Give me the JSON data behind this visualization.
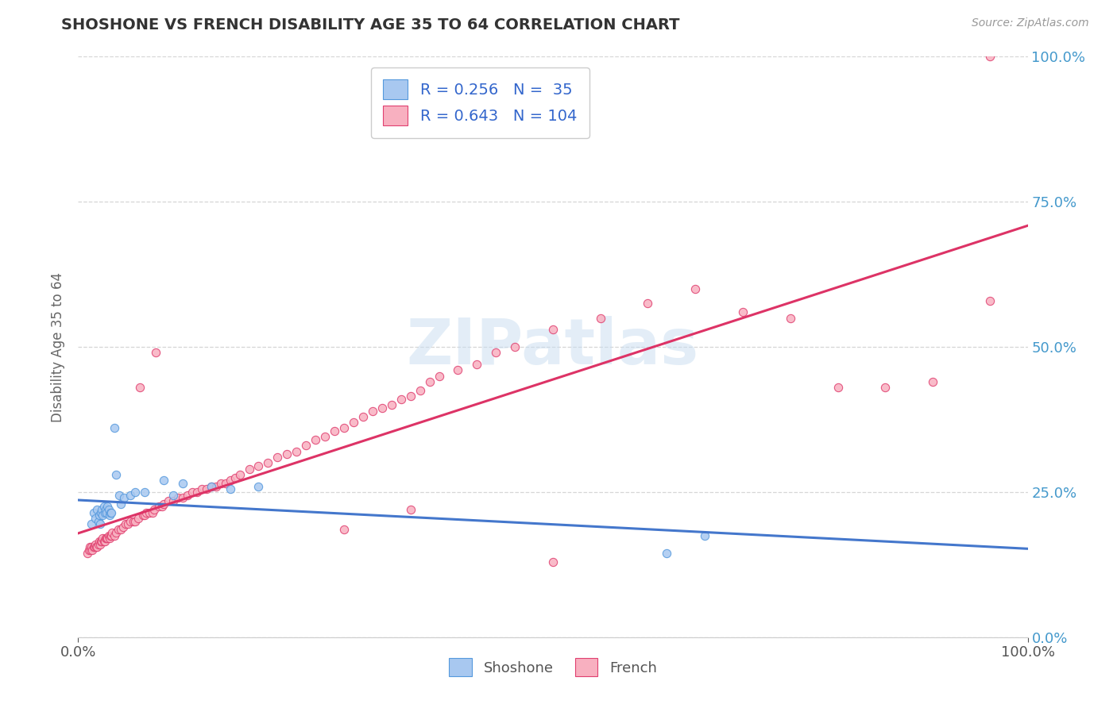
{
  "title": "SHOSHONE VS FRENCH DISABILITY AGE 35 TO 64 CORRELATION CHART",
  "source_text": "Source: ZipAtlas.com",
  "ylabel": "Disability Age 35 to 64",
  "xlim": [
    0.0,
    1.0
  ],
  "ylim": [
    0.0,
    1.0
  ],
  "shoshone_color": "#a8c8f0",
  "shoshone_edge_color": "#5599dd",
  "french_color": "#f8b0c0",
  "french_edge_color": "#e04070",
  "shoshone_line_color": "#4477cc",
  "french_line_color": "#dd3366",
  "shoshone_R": 0.256,
  "shoshone_N": 35,
  "french_R": 0.643,
  "french_N": 104,
  "legend_text_color": "#3366cc",
  "right_tick_color": "#4499cc",
  "watermark_color": "#c8ddf0",
  "background_color": "#ffffff",
  "grid_color": "#cccccc",
  "title_color": "#333333",
  "source_color": "#999999",
  "ylabel_color": "#666666",
  "shoshone_x": [
    0.014,
    0.016,
    0.018,
    0.02,
    0.021,
    0.022,
    0.023,
    0.024,
    0.025,
    0.026,
    0.027,
    0.028,
    0.029,
    0.03,
    0.031,
    0.032,
    0.033,
    0.034,
    0.035,
    0.038,
    0.04,
    0.043,
    0.045,
    0.048,
    0.055,
    0.06,
    0.07,
    0.09,
    0.1,
    0.11,
    0.14,
    0.16,
    0.19,
    0.62,
    0.66
  ],
  "shoshone_y": [
    0.195,
    0.215,
    0.205,
    0.22,
    0.2,
    0.21,
    0.195,
    0.215,
    0.22,
    0.21,
    0.225,
    0.215,
    0.22,
    0.215,
    0.225,
    0.22,
    0.21,
    0.215,
    0.215,
    0.36,
    0.28,
    0.245,
    0.23,
    0.24,
    0.245,
    0.25,
    0.25,
    0.27,
    0.245,
    0.265,
    0.26,
    0.255,
    0.26,
    0.145,
    0.175
  ],
  "french_x": [
    0.01,
    0.011,
    0.012,
    0.013,
    0.014,
    0.015,
    0.016,
    0.017,
    0.018,
    0.019,
    0.02,
    0.021,
    0.022,
    0.023,
    0.024,
    0.025,
    0.026,
    0.027,
    0.028,
    0.029,
    0.03,
    0.031,
    0.032,
    0.033,
    0.034,
    0.035,
    0.036,
    0.038,
    0.04,
    0.042,
    0.045,
    0.047,
    0.05,
    0.052,
    0.055,
    0.058,
    0.06,
    0.063,
    0.065,
    0.068,
    0.07,
    0.072,
    0.075,
    0.078,
    0.08,
    0.082,
    0.085,
    0.088,
    0.09,
    0.095,
    0.1,
    0.105,
    0.11,
    0.115,
    0.12,
    0.125,
    0.13,
    0.135,
    0.14,
    0.145,
    0.15,
    0.155,
    0.16,
    0.165,
    0.17,
    0.18,
    0.19,
    0.2,
    0.21,
    0.22,
    0.23,
    0.24,
    0.25,
    0.26,
    0.27,
    0.28,
    0.29,
    0.3,
    0.31,
    0.32,
    0.33,
    0.34,
    0.35,
    0.36,
    0.37,
    0.38,
    0.4,
    0.42,
    0.44,
    0.46,
    0.5,
    0.55,
    0.6,
    0.65,
    0.7,
    0.75,
    0.8,
    0.85,
    0.9,
    0.96,
    0.28,
    0.35,
    0.5,
    0.96
  ],
  "french_y": [
    0.145,
    0.15,
    0.155,
    0.15,
    0.155,
    0.15,
    0.155,
    0.155,
    0.16,
    0.155,
    0.155,
    0.16,
    0.165,
    0.16,
    0.165,
    0.165,
    0.17,
    0.165,
    0.165,
    0.17,
    0.17,
    0.17,
    0.175,
    0.17,
    0.175,
    0.175,
    0.18,
    0.175,
    0.18,
    0.185,
    0.185,
    0.19,
    0.195,
    0.195,
    0.2,
    0.2,
    0.2,
    0.205,
    0.43,
    0.21,
    0.21,
    0.215,
    0.215,
    0.215,
    0.22,
    0.49,
    0.225,
    0.225,
    0.23,
    0.235,
    0.235,
    0.24,
    0.24,
    0.245,
    0.25,
    0.25,
    0.255,
    0.255,
    0.26,
    0.26,
    0.265,
    0.265,
    0.27,
    0.275,
    0.28,
    0.29,
    0.295,
    0.3,
    0.31,
    0.315,
    0.32,
    0.33,
    0.34,
    0.345,
    0.355,
    0.36,
    0.37,
    0.38,
    0.39,
    0.395,
    0.4,
    0.41,
    0.415,
    0.425,
    0.44,
    0.45,
    0.46,
    0.47,
    0.49,
    0.5,
    0.53,
    0.55,
    0.575,
    0.6,
    0.56,
    0.55,
    0.43,
    0.43,
    0.44,
    1.0,
    0.185,
    0.22,
    0.13,
    0.58
  ]
}
